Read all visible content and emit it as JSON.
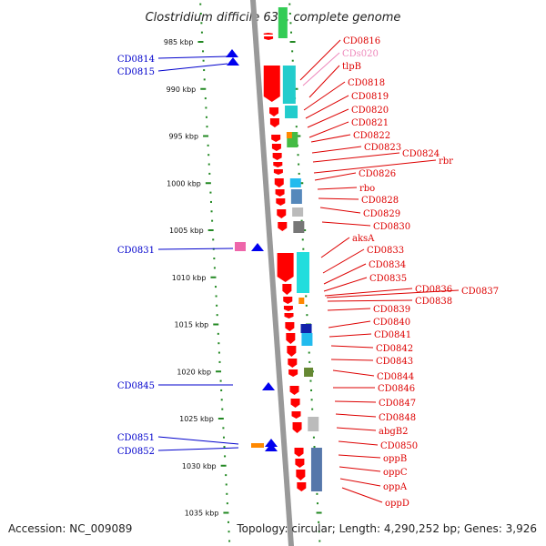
{
  "title": "Clostridium difficile 630, complete genome",
  "footer": {
    "accession": "Accession: NC_009089",
    "summary": "Topology: circular; Length: 4,290,252 bp; Genes: 3,926"
  },
  "colors": {
    "forward_label": "#dd0000",
    "reverse_label": "#0000cc",
    "ncrna_label": "#ee88bb",
    "forward_gene": "#ff0000",
    "reverse_gene": "#0000ee",
    "tick": "#228822",
    "backbone": "#999999"
  },
  "axis_ticks": [
    {
      "label": "985 kbp",
      "value": 985
    },
    {
      "label": "990 kbp",
      "value": 990
    },
    {
      "label": "995 kbp",
      "value": 995
    },
    {
      "label": "1000 kbp",
      "value": 1000
    },
    {
      "label": "1005 kbp",
      "value": 1005
    },
    {
      "label": "1010 kbp",
      "value": 1010
    },
    {
      "label": "1015 kbp",
      "value": 1015
    },
    {
      "label": "1020 kbp",
      "value": 1020
    },
    {
      "label": "1025 kbp",
      "value": 1025
    },
    {
      "label": "1030 kbp",
      "value": 1030
    },
    {
      "label": "1035 kbp",
      "value": 1035
    }
  ],
  "reverse_genes": [
    "CD0814",
    "CD0815",
    "CD0831",
    "CD0845",
    "CD0851",
    "CD0852"
  ],
  "forward_genes": [
    "CD0816",
    "CDs020",
    "tlpB",
    "CD0818",
    "CD0819",
    "CD0820",
    "CD0821",
    "CD0822",
    "CD0823",
    "CD0824",
    "rbr",
    "CD0826",
    "rbo",
    "CD0828",
    "CD0829",
    "CD0830",
    "aksA",
    "CD0833",
    "CD0834",
    "CD0835",
    "CD0836",
    "CD0837",
    "CD0838",
    "CD0839",
    "CD0840",
    "CD0841",
    "CD0842",
    "CD0843",
    "CD0844",
    "CD0846",
    "CD0847",
    "CD0848",
    "abgB2",
    "CD0850",
    "oppB",
    "oppC",
    "oppA",
    "oppD"
  ]
}
